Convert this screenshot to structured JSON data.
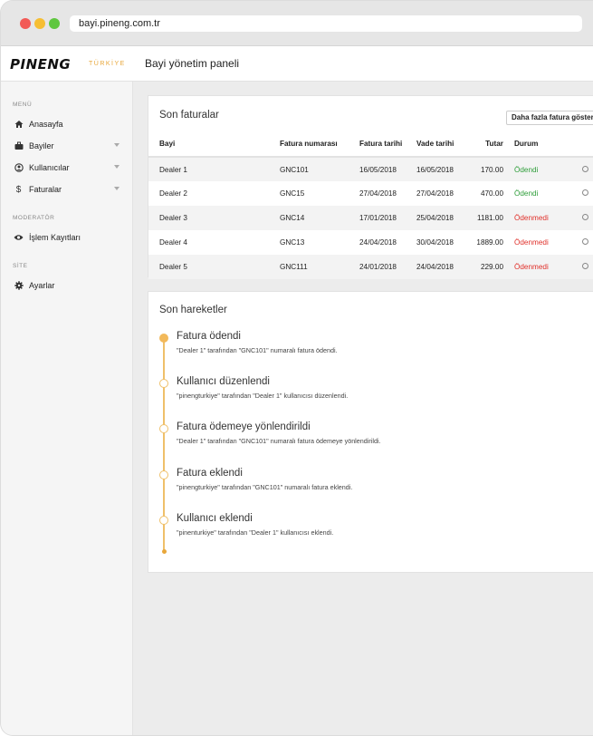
{
  "browser": {
    "url": "bayi.pineng.com.tr"
  },
  "header": {
    "logo": "PINENG",
    "logo_sub": "TÜRKİYE",
    "title": "Bayi yönetim paneli"
  },
  "sidebar": {
    "sections": [
      {
        "label": "MENÜ",
        "items": [
          {
            "label": "Anasayfa",
            "icon": "home-icon",
            "has_chevron": false
          },
          {
            "label": "Bayiler",
            "icon": "briefcase-icon",
            "has_chevron": true
          },
          {
            "label": "Kullanıcılar",
            "icon": "user-circle-icon",
            "has_chevron": true
          },
          {
            "label": "Faturalar",
            "icon": "dollar-icon",
            "has_chevron": true
          }
        ]
      },
      {
        "label": "MODERATÖR",
        "items": [
          {
            "label": "İşlem Kayıtları",
            "icon": "eye-icon",
            "has_chevron": false
          }
        ]
      },
      {
        "label": "SİTE",
        "items": [
          {
            "label": "Ayarlar",
            "icon": "gear-icon",
            "has_chevron": false
          }
        ]
      }
    ]
  },
  "invoices": {
    "title": "Son faturalar",
    "more_label": "Daha fazla fatura göster",
    "columns": [
      "Bayi",
      "Fatura numarası",
      "Fatura tarihi",
      "Vade tarihi",
      "Tutar",
      "Durum"
    ],
    "rows": [
      {
        "dealer": "Dealer 1",
        "number": "GNC101",
        "date": "16/05/2018",
        "due": "16/05/2018",
        "amount": "170.00",
        "status": "Ödendi",
        "paid": true
      },
      {
        "dealer": "Dealer 2",
        "number": "GNC15",
        "date": "27/04/2018",
        "due": "27/04/2018",
        "amount": "470.00",
        "status": "Ödendi",
        "paid": true
      },
      {
        "dealer": "Dealer 3",
        "number": "GNC14",
        "date": "17/01/2018",
        "due": "25/04/2018",
        "amount": "1181.00",
        "status": "Ödenmedi",
        "paid": false
      },
      {
        "dealer": "Dealer 4",
        "number": "GNC13",
        "date": "24/04/2018",
        "due": "30/04/2018",
        "amount": "1889.00",
        "status": "Ödenmedi",
        "paid": false
      },
      {
        "dealer": "Dealer 5",
        "number": "GNC111",
        "date": "24/01/2018",
        "due": "24/04/2018",
        "amount": "229.00",
        "status": "Ödenmedi",
        "paid": false
      }
    ]
  },
  "activity": {
    "title": "Son hareketler",
    "items": [
      {
        "title": "Fatura ödendi",
        "desc": "\"Dealer 1\" tarafından \"GNC101\" numaralı fatura ödendi.",
        "filled": true
      },
      {
        "title": "Kullanıcı düzenlendi",
        "desc": "\"pinengturkiye\" tarafından \"Dealer 1\" kullanıcısı düzenlendi.",
        "filled": false
      },
      {
        "title": "Fatura ödemeye yönlendirildi",
        "desc": "\"Dealer 1\" tarafından \"GNC101\" numaralı fatura ödemeye yönlendirildi.",
        "filled": false
      },
      {
        "title": "Fatura eklendi",
        "desc": "\"pinengturkiye\" tarafından \"GNC101\" numaralı fatura eklendi.",
        "filled": false
      },
      {
        "title": "Kullanıcı eklendi",
        "desc": "\"pinenturkiye\" tarafından \"Dealer 1\" kullanıcısı eklendi.",
        "filled": false
      }
    ]
  },
  "colors": {
    "accent": "#e8a73a",
    "paid": "#2f9e3a",
    "unpaid": "#e0312b"
  }
}
